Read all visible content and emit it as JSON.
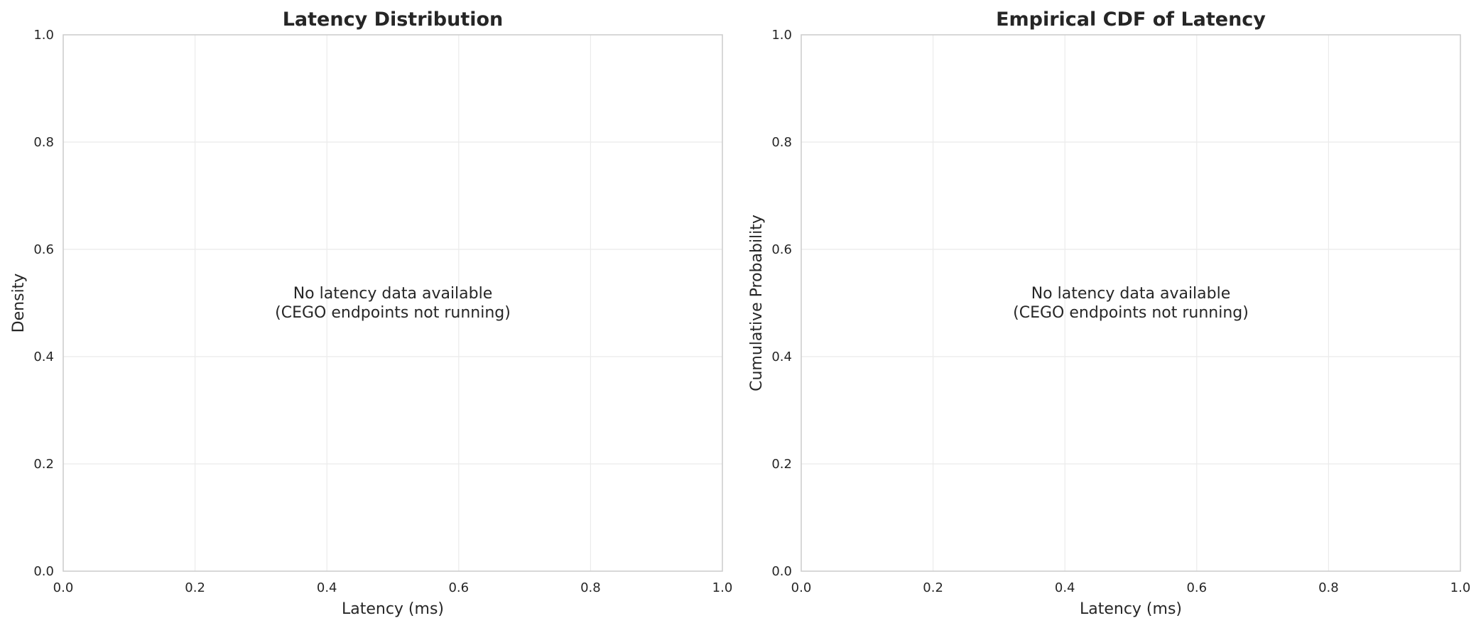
{
  "chart_data": [
    {
      "type": "bar",
      "title": "Latency Distribution",
      "xlabel": "Latency (ms)",
      "ylabel": "Density",
      "xlim": [
        0,
        1
      ],
      "ylim": [
        0,
        1
      ],
      "xticks": [
        "0.0",
        "0.2",
        "0.4",
        "0.6",
        "0.8",
        "1.0"
      ],
      "yticks": [
        "0.0",
        "0.2",
        "0.4",
        "0.6",
        "0.8",
        "1.0"
      ],
      "grid": true,
      "series": [],
      "message": [
        "No latency data available",
        "(CEGO endpoints not running)"
      ]
    },
    {
      "type": "line",
      "title": "Empirical CDF of Latency",
      "xlabel": "Latency (ms)",
      "ylabel": "Cumulative Probability",
      "xlim": [
        0,
        1
      ],
      "ylim": [
        0,
        1
      ],
      "xticks": [
        "0.0",
        "0.2",
        "0.4",
        "0.6",
        "0.8",
        "1.0"
      ],
      "yticks": [
        "0.0",
        "0.2",
        "0.4",
        "0.6",
        "0.8",
        "1.0"
      ],
      "grid": true,
      "series": [],
      "message": [
        "No latency data available",
        "(CEGO endpoints not running)"
      ]
    }
  ],
  "colors": {
    "text": "#262626",
    "grid": "#ebebeb",
    "frame": "#cccccc",
    "background": "#ffffff"
  }
}
